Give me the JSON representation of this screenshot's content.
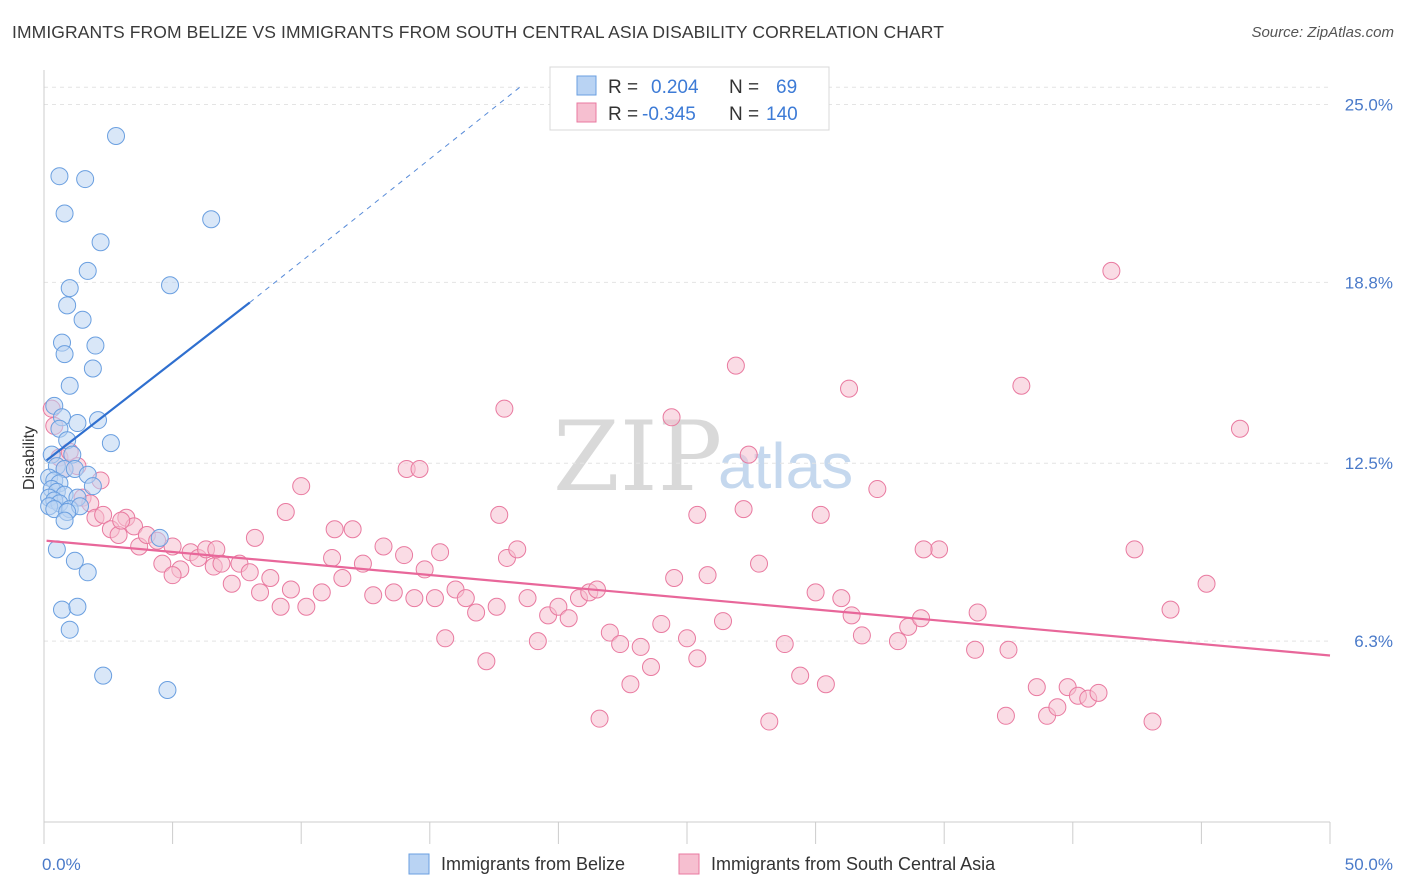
{
  "title": "IMMIGRANTS FROM BELIZE VS IMMIGRANTS FROM SOUTH CENTRAL ASIA DISABILITY CORRELATION CHART",
  "source": "Source: ZipAtlas.com",
  "watermark": {
    "zip": "ZIP",
    "atlas": "atlas"
  },
  "colors": {
    "blue": "#6a9fe0",
    "blue_fill": "#b9d3f3",
    "blue_line": "#2f6fcf",
    "pink": "#e97aa0",
    "pink_fill": "#f6bfd0",
    "pink_line": "#e8679a",
    "tick_text": "#4a7ac9"
  },
  "legend": {
    "rows": [
      {
        "r_label": "R =",
        "r_value": "0.204",
        "n_label": "N =",
        "n_value": "69"
      },
      {
        "r_label": "R =",
        "r_value": "-0.345",
        "n_label": "N =",
        "n_value": "140"
      }
    ]
  },
  "chart_data": {
    "type": "scatter",
    "xlabel": "",
    "ylabel": "Disability",
    "xlim": [
      0,
      50
    ],
    "ylim": [
      0,
      26.2
    ],
    "x_tick_labels": [
      "0.0%",
      "50.0%"
    ],
    "y_ticks": [
      6.3,
      12.5,
      18.8,
      25.0
    ],
    "y_tick_labels": [
      "6.3%",
      "12.5%",
      "18.8%",
      "25.0%"
    ],
    "grid": true,
    "legend_position": "top-center",
    "series": [
      {
        "name": "Immigrants from Belize",
        "color": "#6a9fe0",
        "trend": {
          "x": [
            0.1,
            8.0
          ],
          "y": [
            12.6,
            18.1
          ],
          "dashed_to": [
            18.5,
            25.6
          ]
        },
        "points": [
          [
            2.8,
            23.9
          ],
          [
            0.6,
            22.5
          ],
          [
            1.6,
            22.4
          ],
          [
            0.8,
            21.2
          ],
          [
            6.5,
            21.0
          ],
          [
            2.2,
            20.2
          ],
          [
            1.7,
            19.2
          ],
          [
            1.0,
            18.6
          ],
          [
            4.9,
            18.7
          ],
          [
            0.9,
            18.0
          ],
          [
            1.5,
            17.5
          ],
          [
            0.7,
            16.7
          ],
          [
            2.0,
            16.6
          ],
          [
            0.8,
            16.3
          ],
          [
            1.9,
            15.8
          ],
          [
            1.0,
            15.2
          ],
          [
            0.4,
            14.5
          ],
          [
            0.7,
            14.1
          ],
          [
            1.3,
            13.9
          ],
          [
            2.1,
            14.0
          ],
          [
            0.6,
            13.7
          ],
          [
            0.9,
            13.3
          ],
          [
            2.6,
            13.2
          ],
          [
            0.3,
            12.8
          ],
          [
            1.1,
            12.8
          ],
          [
            0.5,
            12.4
          ],
          [
            0.8,
            12.3
          ],
          [
            1.2,
            12.3
          ],
          [
            1.7,
            12.1
          ],
          [
            0.2,
            12.0
          ],
          [
            0.4,
            11.9
          ],
          [
            0.6,
            11.8
          ],
          [
            0.3,
            11.6
          ],
          [
            0.5,
            11.5
          ],
          [
            0.8,
            11.4
          ],
          [
            0.2,
            11.3
          ],
          [
            0.4,
            11.2
          ],
          [
            1.3,
            11.3
          ],
          [
            0.6,
            11.1
          ],
          [
            0.2,
            11.0
          ],
          [
            0.4,
            10.9
          ],
          [
            1.0,
            10.9
          ],
          [
            1.4,
            11.0
          ],
          [
            0.9,
            10.8
          ],
          [
            1.9,
            11.7
          ],
          [
            0.8,
            10.5
          ],
          [
            0.5,
            9.5
          ],
          [
            4.5,
            9.9
          ],
          [
            1.2,
            9.1
          ],
          [
            1.7,
            8.7
          ],
          [
            0.7,
            7.4
          ],
          [
            1.3,
            7.5
          ],
          [
            1.0,
            6.7
          ],
          [
            2.3,
            5.1
          ],
          [
            4.8,
            4.6
          ]
        ]
      },
      {
        "name": "Immigrants from South Central Asia",
        "color": "#e97aa0",
        "trend": {
          "x": [
            0.1,
            50.0
          ],
          "y": [
            9.8,
            5.8
          ]
        },
        "points": [
          [
            0.3,
            14.4
          ],
          [
            0.4,
            13.8
          ],
          [
            0.6,
            12.7
          ],
          [
            0.8,
            12.3
          ],
          [
            1.0,
            12.9
          ],
          [
            1.3,
            12.4
          ],
          [
            1.5,
            11.3
          ],
          [
            1.8,
            11.1
          ],
          [
            2.0,
            10.6
          ],
          [
            2.3,
            10.7
          ],
          [
            2.6,
            10.2
          ],
          [
            2.9,
            10.0
          ],
          [
            3.2,
            10.6
          ],
          [
            3.5,
            10.3
          ],
          [
            3.7,
            9.6
          ],
          [
            4.0,
            10.0
          ],
          [
            4.4,
            9.8
          ],
          [
            4.6,
            9.0
          ],
          [
            5.0,
            9.6
          ],
          [
            5.3,
            8.8
          ],
          [
            5.7,
            9.4
          ],
          [
            6.0,
            9.2
          ],
          [
            6.3,
            9.5
          ],
          [
            6.6,
            8.9
          ],
          [
            6.9,
            9.0
          ],
          [
            7.3,
            8.3
          ],
          [
            7.6,
            9.0
          ],
          [
            8.0,
            8.7
          ],
          [
            8.4,
            8.0
          ],
          [
            8.8,
            8.5
          ],
          [
            9.2,
            7.5
          ],
          [
            9.6,
            8.1
          ],
          [
            10.0,
            11.7
          ],
          [
            10.2,
            7.5
          ],
          [
            10.8,
            8.0
          ],
          [
            11.2,
            9.2
          ],
          [
            11.6,
            8.5
          ],
          [
            12.0,
            10.2
          ],
          [
            12.4,
            9.0
          ],
          [
            12.8,
            7.9
          ],
          [
            13.2,
            9.6
          ],
          [
            13.6,
            8.0
          ],
          [
            14.0,
            9.3
          ],
          [
            14.4,
            7.8
          ],
          [
            14.8,
            8.8
          ],
          [
            15.2,
            7.8
          ],
          [
            15.6,
            6.4
          ],
          [
            16.0,
            8.1
          ],
          [
            16.4,
            7.8
          ],
          [
            16.8,
            7.3
          ],
          [
            17.2,
            5.6
          ],
          [
            17.6,
            7.5
          ],
          [
            18.0,
            9.2
          ],
          [
            18.4,
            9.5
          ],
          [
            18.8,
            7.8
          ],
          [
            19.2,
            6.3
          ],
          [
            19.6,
            7.2
          ],
          [
            20.0,
            7.5
          ],
          [
            20.4,
            7.1
          ],
          [
            20.8,
            7.8
          ],
          [
            21.2,
            8.0
          ],
          [
            21.6,
            3.6
          ],
          [
            22.0,
            6.6
          ],
          [
            22.4,
            6.2
          ],
          [
            22.8,
            4.8
          ],
          [
            23.2,
            6.1
          ],
          [
            23.6,
            5.4
          ],
          [
            24.0,
            6.9
          ],
          [
            24.5,
            8.5
          ],
          [
            25.0,
            6.4
          ],
          [
            25.4,
            5.7
          ],
          [
            25.8,
            8.6
          ],
          [
            26.4,
            7.0
          ],
          [
            27.2,
            10.9
          ],
          [
            27.8,
            9.0
          ],
          [
            28.2,
            3.5
          ],
          [
            28.8,
            6.2
          ],
          [
            29.4,
            5.1
          ],
          [
            30.0,
            8.0
          ],
          [
            30.4,
            4.8
          ],
          [
            31.0,
            7.8
          ],
          [
            31.8,
            6.5
          ],
          [
            32.4,
            11.6
          ],
          [
            33.2,
            6.3
          ],
          [
            33.6,
            6.8
          ],
          [
            34.1,
            7.1
          ],
          [
            34.8,
            9.5
          ],
          [
            36.2,
            6.0
          ],
          [
            37.4,
            3.7
          ],
          [
            38.0,
            15.2
          ],
          [
            38.6,
            4.7
          ],
          [
            39.0,
            3.7
          ],
          [
            39.4,
            4.0
          ],
          [
            39.8,
            4.7
          ],
          [
            40.2,
            4.4
          ],
          [
            40.6,
            4.3
          ],
          [
            41.0,
            4.5
          ],
          [
            41.5,
            19.2
          ],
          [
            42.4,
            9.5
          ],
          [
            43.1,
            3.5
          ],
          [
            43.8,
            7.4
          ],
          [
            45.2,
            8.3
          ],
          [
            46.5,
            13.7
          ],
          [
            26.9,
            15.9
          ],
          [
            17.9,
            14.4
          ],
          [
            27.4,
            12.8
          ],
          [
            24.4,
            14.1
          ],
          [
            31.3,
            15.1
          ],
          [
            14.1,
            12.3
          ],
          [
            14.6,
            12.3
          ],
          [
            25.4,
            10.7
          ],
          [
            30.2,
            10.7
          ],
          [
            31.4,
            7.2
          ],
          [
            34.2,
            9.5
          ],
          [
            36.3,
            7.3
          ],
          [
            37.5,
            6.0
          ],
          [
            21.5,
            8.1
          ],
          [
            11.3,
            10.2
          ],
          [
            15.4,
            9.4
          ],
          [
            17.7,
            10.7
          ],
          [
            9.4,
            10.8
          ],
          [
            8.2,
            9.9
          ],
          [
            6.7,
            9.5
          ],
          [
            5.0,
            8.6
          ],
          [
            3.0,
            10.5
          ],
          [
            2.2,
            11.9
          ]
        ]
      }
    ]
  }
}
